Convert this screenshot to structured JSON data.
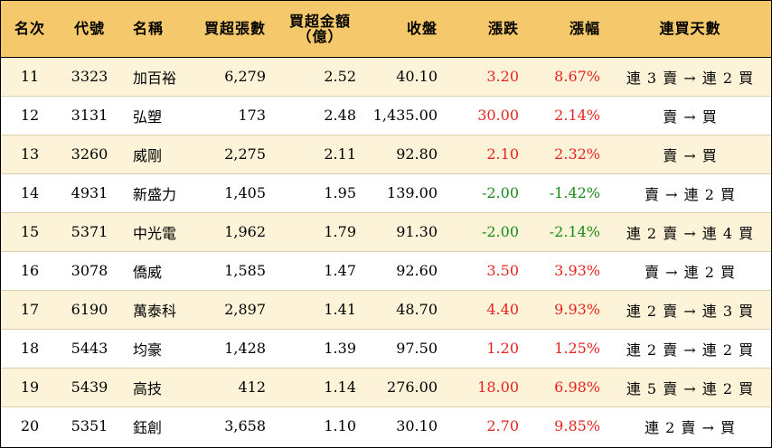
{
  "headers": {
    "rank": "名次",
    "code": "代號",
    "name": "名稱",
    "net_buy_lots": "買超張數",
    "net_buy_amount_line1": "買超金額",
    "net_buy_amount_line2": "（億）",
    "close": "收盤",
    "change": "漲跌",
    "change_pct": "漲幅",
    "streak": "連買天數"
  },
  "rows": [
    {
      "rank": "11",
      "code": "3323",
      "name": "加百裕",
      "lots": "6,279",
      "amount": "2.52",
      "close": "40.10",
      "change": "3.20",
      "pct": "8.67%",
      "direction": "up",
      "streak": "連 3 賣 → 連 2 買"
    },
    {
      "rank": "12",
      "code": "3131",
      "name": "弘塑",
      "lots": "173",
      "amount": "2.48",
      "close": "1,435.00",
      "change": "30.00",
      "pct": "2.14%",
      "direction": "up",
      "streak": "賣 → 買"
    },
    {
      "rank": "13",
      "code": "3260",
      "name": "威剛",
      "lots": "2,275",
      "amount": "2.11",
      "close": "92.80",
      "change": "2.10",
      "pct": "2.32%",
      "direction": "up",
      "streak": "賣 → 買"
    },
    {
      "rank": "14",
      "code": "4931",
      "name": "新盛力",
      "lots": "1,405",
      "amount": "1.95",
      "close": "139.00",
      "change": "-2.00",
      "pct": "-1.42%",
      "direction": "down",
      "streak": "賣 → 連 2 買"
    },
    {
      "rank": "15",
      "code": "5371",
      "name": "中光電",
      "lots": "1,962",
      "amount": "1.79",
      "close": "91.30",
      "change": "-2.00",
      "pct": "-2.14%",
      "direction": "down",
      "streak": "連 2 賣 → 連 4 買"
    },
    {
      "rank": "16",
      "code": "3078",
      "name": "僑威",
      "lots": "1,585",
      "amount": "1.47",
      "close": "92.60",
      "change": "3.50",
      "pct": "3.93%",
      "direction": "up",
      "streak": "賣 → 連 2 買"
    },
    {
      "rank": "17",
      "code": "6190",
      "name": "萬泰科",
      "lots": "2,897",
      "amount": "1.41",
      "close": "48.70",
      "change": "4.40",
      "pct": "9.93%",
      "direction": "up",
      "streak": "連 2 賣 → 連 3 買"
    },
    {
      "rank": "18",
      "code": "5443",
      "name": "均豪",
      "lots": "1,428",
      "amount": "1.39",
      "close": "97.50",
      "change": "1.20",
      "pct": "1.25%",
      "direction": "up",
      "streak": "連 2 賣 → 連 2 買"
    },
    {
      "rank": "19",
      "code": "5439",
      "name": "高技",
      "lots": "412",
      "amount": "1.14",
      "close": "276.00",
      "change": "18.00",
      "pct": "6.98%",
      "direction": "up",
      "streak": "連 5 賣 → 連 2 買"
    },
    {
      "rank": "20",
      "code": "5351",
      "name": "鈺創",
      "lots": "3,658",
      "amount": "1.10",
      "close": "30.10",
      "change": "2.70",
      "pct": "9.85%",
      "direction": "up",
      "streak": "連 2 賣 → 買"
    }
  ],
  "colors": {
    "header_bg": "#f5c96b",
    "odd_row_bg": "#fdf3d8",
    "up": "#e8231f",
    "down": "#1a8a1a"
  }
}
